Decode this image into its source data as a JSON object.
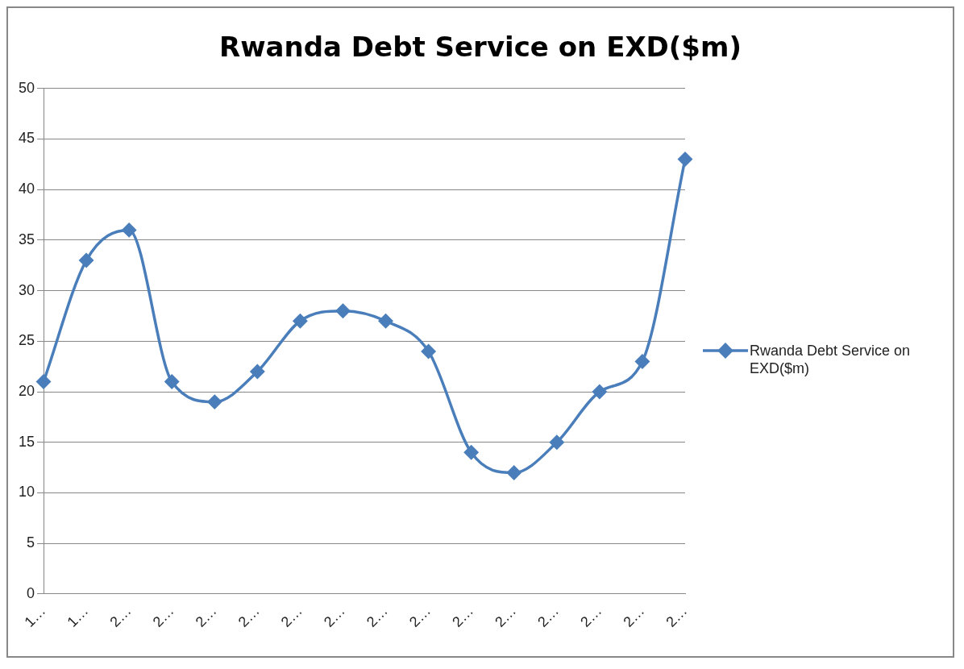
{
  "chart_data": {
    "type": "line",
    "title": "Rwanda Debt Service on EXD($m)",
    "categories": [
      "1…",
      "1…",
      "2…",
      "2…",
      "2…",
      "2…",
      "2…",
      "2…",
      "2…",
      "2…",
      "2…",
      "2…",
      "2…",
      "2…",
      "2…",
      "2…"
    ],
    "series": [
      {
        "name": "Rwanda Debt Service on EXD($m)",
        "color": "#4a7ebb",
        "values": [
          21,
          33,
          36,
          21,
          19,
          22,
          27,
          28,
          27,
          24,
          14,
          12,
          15,
          20,
          23,
          43
        ]
      }
    ],
    "ylim": [
      0,
      50
    ],
    "yticks": [
      0,
      5,
      10,
      15,
      20,
      25,
      30,
      35,
      40,
      45,
      50
    ],
    "grid": "y",
    "legend": "right",
    "marker": "diamond",
    "line_style": "solid"
  }
}
